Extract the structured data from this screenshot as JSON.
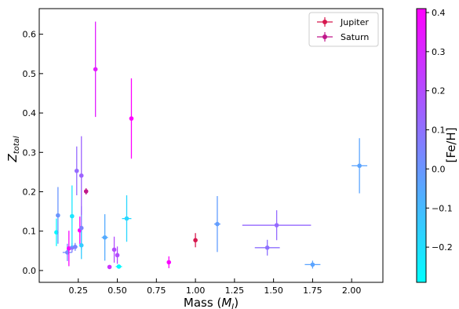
{
  "chart_data": {
    "type": "scatter",
    "xlabel": "Mass (",
    "xlabel_italic": "M",
    "xlabel_sub": "J",
    "xlabel_end": ")",
    "ylabel": "Z",
    "ylabel_sub": "total",
    "xlim": [
      0.0,
      2.2
    ],
    "ylim": [
      -0.03,
      0.665
    ],
    "xticks": [
      "0.25",
      "0.50",
      "0.75",
      "1.00",
      "1.25",
      "1.50",
      "1.75",
      "2.00"
    ],
    "yticks": [
      "0.0",
      "0.1",
      "0.2",
      "0.3",
      "0.4",
      "0.5",
      "0.6"
    ],
    "colorbar": {
      "label": "[Fe/H]",
      "range": [
        -0.29,
        0.41
      ],
      "ticks": [
        "−0.2",
        "−0.1",
        "0.0",
        "0.1",
        "0.2",
        "0.3",
        "0.4"
      ],
      "colormap": "cool"
    },
    "legend": {
      "placement": "top-right",
      "entries": [
        {
          "label": "Jupiter",
          "color": "#d6174e"
        },
        {
          "label": "Saturn",
          "color": "#c0178a"
        }
      ]
    },
    "series": [
      {
        "name": "Jupiter",
        "color": "#d6174e",
        "points": [
          {
            "x": 1.0,
            "y": 0.077,
            "yerr": 0.018
          }
        ]
      },
      {
        "name": "Saturn",
        "color": "#c0178a",
        "points": [
          {
            "x": 0.3,
            "y": 0.201,
            "yerr": 0.008
          }
        ]
      },
      {
        "name": "",
        "color_by": "feh",
        "points": [
          {
            "x": 0.11,
            "y": 0.097,
            "yerr": 0.035,
            "feh": -0.27
          },
          {
            "x": 0.12,
            "y": 0.14,
            "yerr": 0.072,
            "feh": 0.0
          },
          {
            "x": 0.18,
            "y": 0.046,
            "yerr": 0.022,
            "xerr": 0.03,
            "feh": 0.03
          },
          {
            "x": 0.19,
            "y": 0.056,
            "yerr": 0.045,
            "feh": 0.39
          },
          {
            "x": 0.21,
            "y": 0.058,
            "yerr": 0.012,
            "feh": 0.08
          },
          {
            "x": 0.21,
            "y": 0.138,
            "yerr": 0.078,
            "feh": -0.22
          },
          {
            "x": 0.23,
            "y": 0.06,
            "yerr": 0.01,
            "xerr": 0.015,
            "feh": 0.05
          },
          {
            "x": 0.24,
            "y": 0.253,
            "yerr": 0.062,
            "feh": 0.12
          },
          {
            "x": 0.26,
            "y": 0.102,
            "yerr": 0.035,
            "feh": 0.41
          },
          {
            "x": 0.27,
            "y": 0.108,
            "yerr": 0.055,
            "feh": 0.05
          },
          {
            "x": 0.27,
            "y": 0.241,
            "yerr": 0.1,
            "feh": 0.14
          },
          {
            "x": 0.27,
            "y": 0.064,
            "yerr": 0.035,
            "feh": -0.15
          },
          {
            "x": 0.36,
            "y": 0.511,
            "yerr": 0.121,
            "feh": 0.33
          },
          {
            "x": 0.42,
            "y": 0.084,
            "yerr": 0.059,
            "xerr": 0.02,
            "feh": -0.06
          },
          {
            "x": 0.45,
            "y": 0.009,
            "yerr": 0.004,
            "feh": 0.27
          },
          {
            "x": 0.48,
            "y": 0.053,
            "yerr": 0.033,
            "feh": 0.2
          },
          {
            "x": 0.5,
            "y": 0.039,
            "yerr": 0.022,
            "feh": 0.2
          },
          {
            "x": 0.51,
            "y": 0.01,
            "yerr": 0.005,
            "xerr": 0.02,
            "feh": -0.27
          },
          {
            "x": 0.56,
            "y": 0.132,
            "yerr": 0.059,
            "xerr": 0.03,
            "feh": -0.18
          },
          {
            "x": 0.59,
            "y": 0.386,
            "yerr": 0.102,
            "feh": 0.41
          },
          {
            "x": 0.83,
            "y": 0.021,
            "yerr": 0.015,
            "feh": 0.4
          },
          {
            "x": 1.14,
            "y": 0.118,
            "yerr": 0.071,
            "xerr": 0.02,
            "feh": -0.02
          },
          {
            "x": 1.46,
            "y": 0.058,
            "yerr": 0.02,
            "xerr": 0.08,
            "feh": 0.1
          },
          {
            "x": 1.52,
            "y": 0.115,
            "yerr": 0.038,
            "xerr": 0.22,
            "feh": 0.12
          },
          {
            "x": 1.75,
            "y": 0.015,
            "yerr": 0.01,
            "xerr": 0.05,
            "feh": -0.04
          },
          {
            "x": 2.05,
            "y": 0.266,
            "yerr": 0.07,
            "xerr": 0.05,
            "feh": -0.04
          }
        ]
      }
    ]
  }
}
